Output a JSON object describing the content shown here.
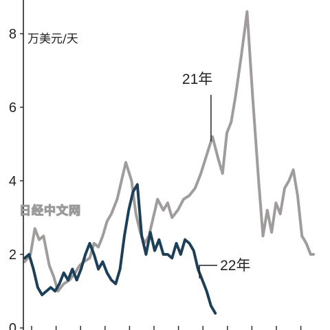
{
  "watermark": "日经中文网",
  "chart_data": {
    "type": "line",
    "ylabel": "万美元/天",
    "ylim": [
      0,
      9
    ],
    "yticks": [
      0,
      2,
      4,
      6,
      8
    ],
    "x_range": [
      0,
      100
    ],
    "colors": {
      "21年": "#a09c9c",
      "22年": "#1d3f57",
      "axis": "#222222"
    },
    "series": [
      {
        "name": "21年",
        "x": [
          0,
          2,
          3.5,
          5,
          6.5,
          8.5,
          10,
          11.5,
          13.5,
          15.5,
          17.5,
          19,
          20.5,
          22.5,
          24,
          25.5,
          27,
          28.5,
          30,
          32,
          33.5,
          35,
          37,
          38.5,
          40,
          41.5,
          43,
          44.5,
          46,
          48,
          49.5,
          51,
          53,
          55,
          57,
          59,
          61,
          63,
          65,
          67,
          68.5,
          70,
          71.5,
          73,
          75,
          77,
          79,
          81,
          82.5,
          84,
          85.5,
          87,
          88.5,
          90,
          91.5,
          93,
          94.5,
          96,
          97.5,
          99,
          100
        ],
        "values": [
          1.8,
          2.0,
          2.7,
          2.4,
          2.5,
          1.7,
          1.4,
          1.0,
          1.2,
          1.3,
          1.5,
          1.7,
          1.8,
          1.9,
          2.3,
          2.2,
          2.5,
          2.9,
          3.1,
          3.5,
          4.0,
          4.5,
          4.0,
          3.1,
          2.6,
          2.3,
          2.5,
          3.0,
          3.5,
          3.2,
          3.4,
          3.0,
          3.2,
          3.5,
          3.6,
          3.8,
          4.2,
          4.7,
          5.2,
          4.6,
          4.2,
          5.3,
          5.6,
          6.3,
          7.4,
          8.6,
          6.2,
          4.0,
          2.5,
          3.2,
          2.6,
          3.4,
          3.1,
          3.8,
          4.0,
          4.3,
          3.6,
          2.5,
          2.3,
          2.0,
          2.0
        ]
      },
      {
        "name": "22年",
        "x": [
          0,
          1.5,
          3,
          4.5,
          6,
          7.5,
          9,
          10.5,
          12,
          13.5,
          15,
          16.5,
          18,
          19.5,
          21,
          22.5,
          24,
          25.5,
          27,
          28.5,
          30,
          31.5,
          33,
          34.5,
          36,
          37.5,
          39,
          40.5,
          42,
          43.5,
          45,
          46.5,
          48,
          49.5,
          51,
          52.5,
          54,
          55.5,
          57,
          58.5,
          60,
          61.5,
          63,
          64.5,
          66
        ],
        "values": [
          1.9,
          2.0,
          1.6,
          1.1,
          0.9,
          1.0,
          1.1,
          1.0,
          1.2,
          1.5,
          1.3,
          1.6,
          1.3,
          1.6,
          2.0,
          2.3,
          2.0,
          1.6,
          1.8,
          1.5,
          1.3,
          1.2,
          1.6,
          2.5,
          3.2,
          3.7,
          3.9,
          2.5,
          2.0,
          2.6,
          2.1,
          2.4,
          2.0,
          2.0,
          1.9,
          2.3,
          2.0,
          2.4,
          2.3,
          2.1,
          1.6,
          1.3,
          1.0,
          0.6,
          0.4
        ]
      }
    ]
  }
}
